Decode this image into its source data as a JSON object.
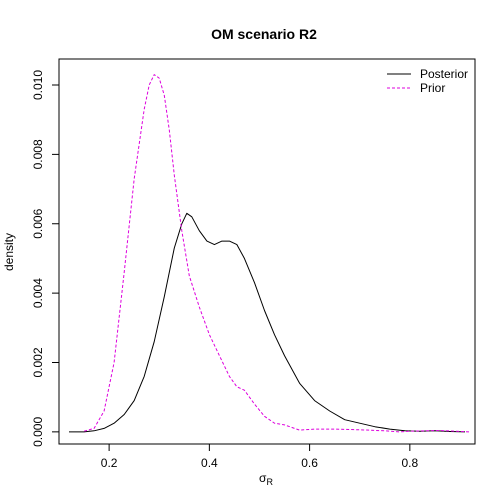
{
  "chart_data": {
    "type": "line",
    "title": "OM scenario R2",
    "xlabel": "σ",
    "xlabel_sub": "R",
    "ylabel": "density",
    "xlim": [
      0.1,
      0.93
    ],
    "ylim": [
      -0.00035,
      0.01075
    ],
    "x_ticks": [
      0.2,
      0.4,
      0.6,
      0.8
    ],
    "x_tick_labels": [
      "0.2",
      "0.4",
      "0.6",
      "0.8"
    ],
    "y_ticks": [
      0.0,
      0.002,
      0.004,
      0.006,
      0.008,
      0.01
    ],
    "y_tick_labels": [
      "0.000",
      "0.002",
      "0.004",
      "0.006",
      "0.008",
      "0.010"
    ],
    "grid": false,
    "legend_position": "top-right",
    "series": [
      {
        "name": "Posterior",
        "color": "#000000",
        "dash": "solid",
        "x": [
          0.12,
          0.15,
          0.17,
          0.19,
          0.21,
          0.23,
          0.25,
          0.27,
          0.29,
          0.31,
          0.33,
          0.345,
          0.355,
          0.365,
          0.38,
          0.395,
          0.41,
          0.425,
          0.44,
          0.455,
          0.47,
          0.49,
          0.51,
          0.53,
          0.55,
          0.58,
          0.61,
          0.64,
          0.67,
          0.7,
          0.73,
          0.76,
          0.79,
          0.82,
          0.85,
          0.88,
          0.91
        ],
        "y": [
          0.0,
          0.0,
          3e-05,
          0.0001,
          0.00025,
          0.0005,
          0.0009,
          0.0016,
          0.0026,
          0.0039,
          0.0053,
          0.006,
          0.0063,
          0.0062,
          0.0058,
          0.0055,
          0.0054,
          0.0055,
          0.0055,
          0.0054,
          0.005,
          0.0043,
          0.0035,
          0.0028,
          0.0022,
          0.0014,
          0.0009,
          0.0006,
          0.00035,
          0.00025,
          0.00015,
          8e-05,
          3e-05,
          2e-05,
          3e-05,
          1e-05,
          0.0
        ]
      },
      {
        "name": "Prior",
        "color": "#dd00dd",
        "dash": "dashed",
        "x": [
          0.15,
          0.17,
          0.19,
          0.21,
          0.23,
          0.25,
          0.27,
          0.28,
          0.29,
          0.3,
          0.31,
          0.32,
          0.33,
          0.345,
          0.36,
          0.38,
          0.4,
          0.42,
          0.44,
          0.455,
          0.47,
          0.49,
          0.51,
          0.53,
          0.55,
          0.58,
          0.61,
          0.65,
          0.7,
          0.75,
          0.78,
          0.8,
          0.83,
          0.86,
          0.89,
          0.92
        ],
        "y": [
          2e-05,
          0.0001,
          0.0006,
          0.002,
          0.0046,
          0.0073,
          0.0093,
          0.01,
          0.0103,
          0.0102,
          0.0097,
          0.0087,
          0.0074,
          0.0058,
          0.0045,
          0.0036,
          0.0028,
          0.0022,
          0.0016,
          0.0013,
          0.0012,
          0.0008,
          0.00045,
          0.00025,
          0.0002,
          5e-05,
          8e-05,
          8e-05,
          6e-05,
          3e-05,
          0.0,
          2e-05,
          3e-05,
          4e-05,
          2e-05,
          0.0
        ]
      }
    ]
  }
}
